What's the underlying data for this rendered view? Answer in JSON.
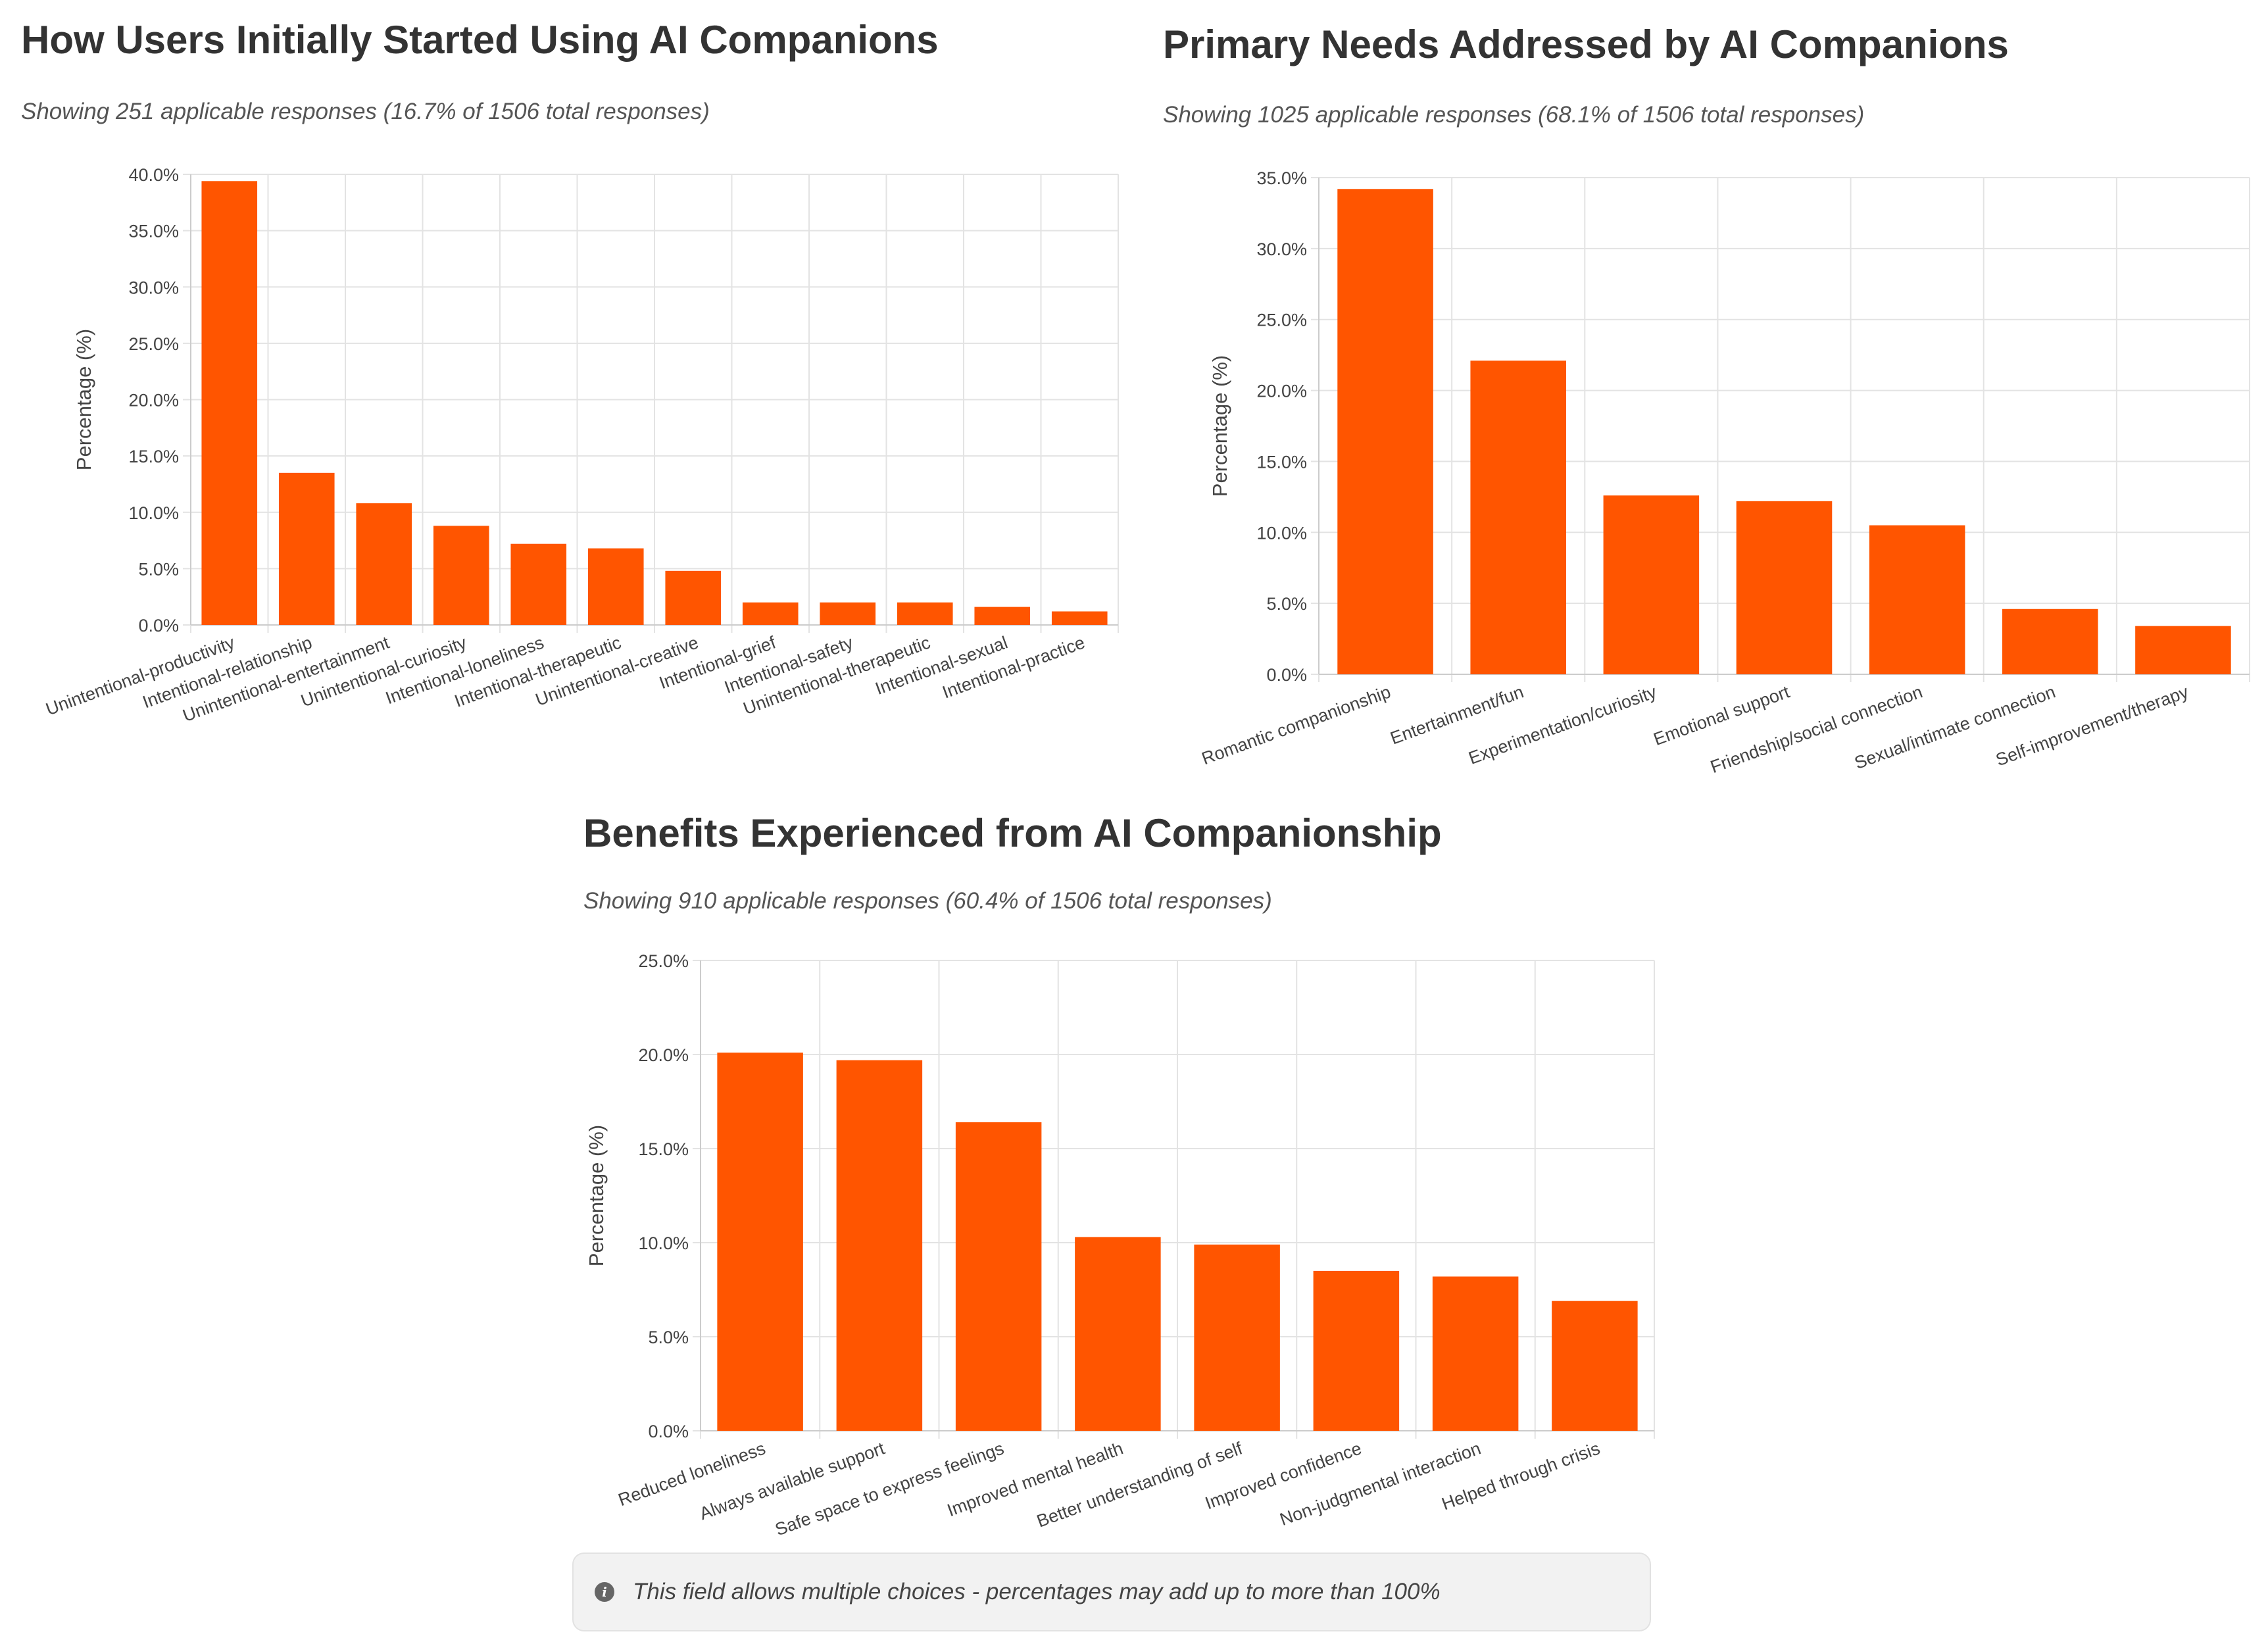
{
  "colors": {
    "bar": "#ff5500",
    "grid": "#e3e3e3",
    "axis": "#cccccc",
    "tick": "#444444"
  },
  "charts": [
    {
      "title": "How Users Initially Started Using AI Companions",
      "subtitle": "Showing 251 applicable responses (16.7% of 1506 total responses)"
    },
    {
      "title": "Primary Needs Addressed by AI Companions",
      "subtitle": "Showing 1025 applicable responses (68.1% of 1506 total responses)"
    },
    {
      "title": "Benefits Experienced from AI Companionship",
      "subtitle": "Showing 910 applicable responses (60.4% of 1506 total responses)"
    }
  ],
  "note": {
    "icon": "info-icon",
    "text": "This field allows multiple choices - percentages may add up to more than 100%"
  },
  "chart_data": [
    {
      "type": "bar",
      "title": "How Users Initially Started Using AI Companions",
      "subtitle": "Showing 251 applicable responses (16.7% of 1506 total responses)",
      "xlabel": "",
      "ylabel": "Percentage (%)",
      "ylim": [
        0,
        40
      ],
      "yticks": [
        0,
        5,
        10,
        15,
        20,
        25,
        30,
        35,
        40
      ],
      "grid": true,
      "categories": [
        "Unintentional-productivity",
        "Intentional-relationship",
        "Unintentional-entertainment",
        "Unintentional-curiosity",
        "Intentional-loneliness",
        "Intentional-therapeutic",
        "Unintentional-creative",
        "Intentional-grief",
        "Intentional-safety",
        "Unintentional-therapeutic",
        "Intentional-sexual",
        "Intentional-practice"
      ],
      "values": [
        39.4,
        13.5,
        10.8,
        8.8,
        7.2,
        6.8,
        4.8,
        2.0,
        2.0,
        2.0,
        1.6,
        1.2
      ]
    },
    {
      "type": "bar",
      "title": "Primary Needs Addressed by AI Companions",
      "subtitle": "Showing 1025 applicable responses (68.1% of 1506 total responses)",
      "xlabel": "",
      "ylabel": "Percentage (%)",
      "ylim": [
        0,
        35
      ],
      "yticks": [
        0,
        5,
        10,
        15,
        20,
        25,
        30,
        35
      ],
      "grid": true,
      "categories": [
        "Romantic companionship",
        "Entertainment/fun",
        "Experimentation/curiosity",
        "Emotional support",
        "Friendship/social connection",
        "Sexual/intimate connection",
        "Self-improvement/therapy"
      ],
      "values": [
        34.2,
        22.1,
        12.6,
        12.2,
        10.5,
        4.6,
        3.4
      ]
    },
    {
      "type": "bar",
      "title": "Benefits Experienced from AI Companionship",
      "subtitle": "Showing 910 applicable responses (60.4% of 1506 total responses)",
      "xlabel": "",
      "ylabel": "Percentage (%)",
      "ylim": [
        0,
        25
      ],
      "yticks": [
        0,
        5,
        10,
        15,
        20,
        25
      ],
      "grid": true,
      "categories": [
        "Reduced loneliness",
        "Always available support",
        "Safe space to express feelings",
        "Improved mental health",
        "Better understanding of self",
        "Improved confidence",
        "Non-judgmental interaction",
        "Helped through crisis"
      ],
      "values": [
        20.1,
        19.7,
        16.4,
        10.3,
        9.9,
        8.5,
        8.2,
        6.9
      ]
    }
  ]
}
